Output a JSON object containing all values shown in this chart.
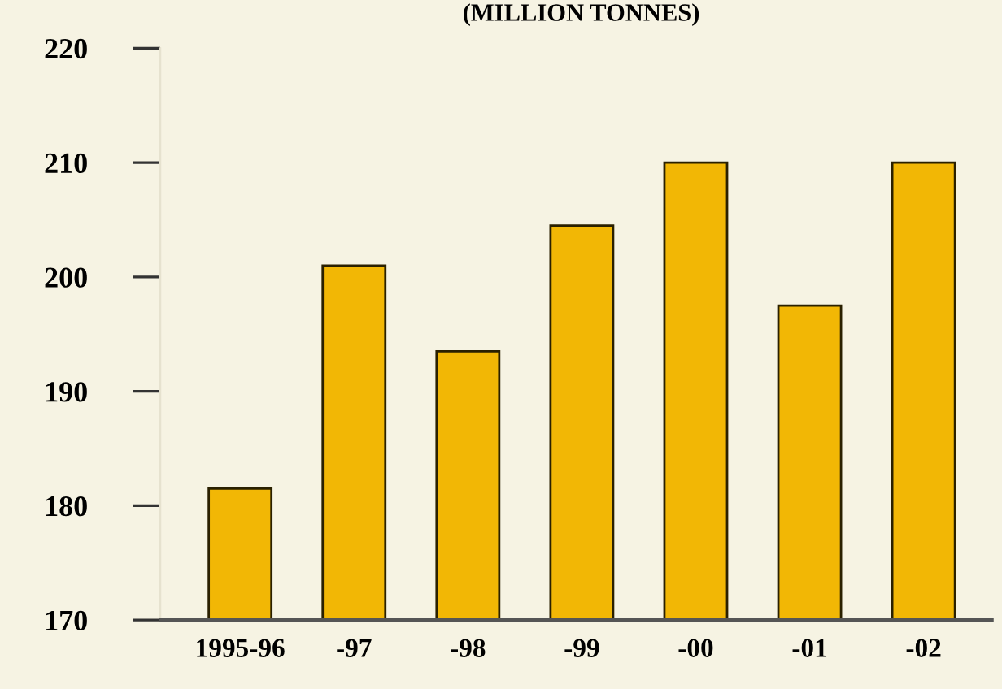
{
  "chart_data": {
    "type": "bar",
    "title": "(MILLION TONNES)",
    "categories": [
      "1995-96",
      "-97",
      "-98",
      "-99",
      "-00",
      "-01",
      "-02"
    ],
    "values": [
      181.5,
      201,
      193.5,
      204.5,
      210,
      197.5,
      210
    ],
    "color": "#f2b705",
    "ylim": [
      170,
      220
    ],
    "yticks": [
      170,
      180,
      190,
      200,
      210,
      220
    ],
    "grid": false
  }
}
